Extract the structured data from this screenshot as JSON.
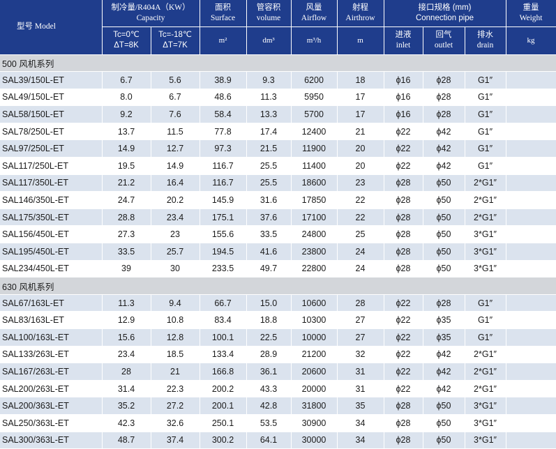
{
  "header": {
    "model": "型号 Model",
    "capacity_zh": "制冷量/R404A（KW）",
    "capacity_en": "Capacity",
    "tc0": "Tc=0℃",
    "dt8": "ΔT=8K",
    "tc18": "Tc=-18℃",
    "dt7": "ΔT=7K",
    "surface_zh": "面积",
    "surface_en": "Surface",
    "surface_unit": "m²",
    "volume_zh": "管容积",
    "volume_en": "volume",
    "volume_unit": "dm³",
    "airflow_zh": "风量",
    "airflow_en": "Airflow",
    "airflow_unit": "m³/h",
    "airthrow_zh": "射程",
    "airthrow_en": "Airthrow",
    "airthrow_unit": "m",
    "connection_zh": "接口规格 (mm)",
    "connection_en": "Connection pipe",
    "inlet_zh": "进液",
    "inlet_en": "inlet",
    "outlet_zh": "回气",
    "outlet_en": "outlet",
    "drain_zh": "排水",
    "drain_en": "drain",
    "weight_zh": "重量",
    "weight_en": "Weight",
    "weight_unit": "kg"
  },
  "sections": [
    {
      "title": "500 风机系列",
      "rows": [
        {
          "model": "SAL39/150L-ET",
          "cap0": "6.7",
          "cap18": "5.6",
          "surface": "38.9",
          "volume": "9.3",
          "airflow": "6200",
          "airthrow": "18",
          "inlet": "ϕ16",
          "outlet": "ϕ28",
          "drain": "G1″",
          "weight": ""
        },
        {
          "model": "SAL49/150L-ET",
          "cap0": "8.0",
          "cap18": "6.7",
          "surface": "48.6",
          "volume": "11.3",
          "airflow": "5950",
          "airthrow": "17",
          "inlet": "ϕ16",
          "outlet": "ϕ28",
          "drain": "G1″",
          "weight": ""
        },
        {
          "model": "SAL58/150L-ET",
          "cap0": "9.2",
          "cap18": "7.6",
          "surface": "58.4",
          "volume": "13.3",
          "airflow": "5700",
          "airthrow": "17",
          "inlet": "ϕ16",
          "outlet": "ϕ28",
          "drain": "G1″",
          "weight": ""
        },
        {
          "model": "SAL78/250L-ET",
          "cap0": "13.7",
          "cap18": "11.5",
          "surface": "77.8",
          "volume": "17.4",
          "airflow": "12400",
          "airthrow": "21",
          "inlet": "ϕ22",
          "outlet": "ϕ42",
          "drain": "G1″",
          "weight": ""
        },
        {
          "model": "SAL97/250L-ET",
          "cap0": "14.9",
          "cap18": "12.7",
          "surface": "97.3",
          "volume": "21.5",
          "airflow": "11900",
          "airthrow": "20",
          "inlet": "ϕ22",
          "outlet": "ϕ42",
          "drain": "G1″",
          "weight": ""
        },
        {
          "model": "SAL117/250L-ET",
          "cap0": "19.5",
          "cap18": "14.9",
          "surface": "116.7",
          "volume": "25.5",
          "airflow": "11400",
          "airthrow": "20",
          "inlet": "ϕ22",
          "outlet": "ϕ42",
          "drain": "G1″",
          "weight": ""
        },
        {
          "model": "SAL117/350L-ET",
          "cap0": "21.2",
          "cap18": "16.4",
          "surface": "116.7",
          "volume": "25.5",
          "airflow": "18600",
          "airthrow": "23",
          "inlet": "ϕ28",
          "outlet": "ϕ50",
          "drain": "2*G1″",
          "weight": ""
        },
        {
          "model": "SAL146/350L-ET",
          "cap0": "24.7",
          "cap18": "20.2",
          "surface": "145.9",
          "volume": "31.6",
          "airflow": "17850",
          "airthrow": "22",
          "inlet": "ϕ28",
          "outlet": "ϕ50",
          "drain": "2*G1″",
          "weight": ""
        },
        {
          "model": "SAL175/350L-ET",
          "cap0": "28.8",
          "cap18": "23.4",
          "surface": "175.1",
          "volume": "37.6",
          "airflow": "17100",
          "airthrow": "22",
          "inlet": "ϕ28",
          "outlet": "ϕ50",
          "drain": "2*G1″",
          "weight": ""
        },
        {
          "model": "SAL156/450L-ET",
          "cap0": "27.3",
          "cap18": "23",
          "surface": "155.6",
          "volume": "33.5",
          "airflow": "24800",
          "airthrow": "25",
          "inlet": "ϕ28",
          "outlet": "ϕ50",
          "drain": "3*G1″",
          "weight": ""
        },
        {
          "model": "SAL195/450L-ET",
          "cap0": "33.5",
          "cap18": "25.7",
          "surface": "194.5",
          "volume": "41.6",
          "airflow": "23800",
          "airthrow": "24",
          "inlet": "ϕ28",
          "outlet": "ϕ50",
          "drain": "3*G1″",
          "weight": ""
        },
        {
          "model": "SAL234/450L-ET",
          "cap0": "39",
          "cap18": "30",
          "surface": "233.5",
          "volume": "49.7",
          "airflow": "22800",
          "airthrow": "24",
          "inlet": "ϕ28",
          "outlet": "ϕ50",
          "drain": "3*G1″",
          "weight": ""
        }
      ]
    },
    {
      "title": "630 风机系列",
      "rows": [
        {
          "model": "SAL67/163L-ET",
          "cap0": "11.3",
          "cap18": "9.4",
          "surface": "66.7",
          "volume": "15.0",
          "airflow": "10600",
          "airthrow": "28",
          "inlet": "ϕ22",
          "outlet": "ϕ28",
          "drain": "G1″",
          "weight": ""
        },
        {
          "model": "SAL83/163L-ET",
          "cap0": "12.9",
          "cap18": "10.8",
          "surface": "83.4",
          "volume": "18.8",
          "airflow": "10300",
          "airthrow": "27",
          "inlet": "ϕ22",
          "outlet": "ϕ35",
          "drain": "G1″",
          "weight": ""
        },
        {
          "model": "SAL100/163L-ET",
          "cap0": "15.6",
          "cap18": "12.8",
          "surface": "100.1",
          "volume": "22.5",
          "airflow": "10000",
          "airthrow": "27",
          "inlet": "ϕ22",
          "outlet": "ϕ35",
          "drain": "G1″",
          "weight": ""
        },
        {
          "model": "SAL133/263L-ET",
          "cap0": "23.4",
          "cap18": "18.5",
          "surface": "133.4",
          "volume": "28.9",
          "airflow": "21200",
          "airthrow": "32",
          "inlet": "ϕ22",
          "outlet": "ϕ42",
          "drain": "2*G1″",
          "weight": ""
        },
        {
          "model": "SAL167/263L-ET",
          "cap0": "28",
          "cap18": "21",
          "surface": "166.8",
          "volume": "36.1",
          "airflow": "20600",
          "airthrow": "31",
          "inlet": "ϕ22",
          "outlet": "ϕ42",
          "drain": "2*G1″",
          "weight": ""
        },
        {
          "model": "SAL200/263L-ET",
          "cap0": "31.4",
          "cap18": "22.3",
          "surface": "200.2",
          "volume": "43.3",
          "airflow": "20000",
          "airthrow": "31",
          "inlet": "ϕ22",
          "outlet": "ϕ42",
          "drain": "2*G1″",
          "weight": ""
        },
        {
          "model": "SAL200/363L-ET",
          "cap0": "35.2",
          "cap18": "27.2",
          "surface": "200.1",
          "volume": "42.8",
          "airflow": "31800",
          "airthrow": "35",
          "inlet": "ϕ28",
          "outlet": "ϕ50",
          "drain": "3*G1″",
          "weight": ""
        },
        {
          "model": "SAL250/363L-ET",
          "cap0": "42.3",
          "cap18": "32.6",
          "surface": "250.1",
          "volume": "53.5",
          "airflow": "30900",
          "airthrow": "34",
          "inlet": "ϕ28",
          "outlet": "ϕ50",
          "drain": "3*G1″",
          "weight": ""
        },
        {
          "model": "SAL300/363L-ET",
          "cap0": "48.7",
          "cap18": "37.4",
          "surface": "300.2",
          "volume": "64.1",
          "airflow": "30000",
          "airthrow": "34",
          "inlet": "ϕ28",
          "outlet": "ϕ50",
          "drain": "3*G1″",
          "weight": ""
        }
      ]
    }
  ]
}
